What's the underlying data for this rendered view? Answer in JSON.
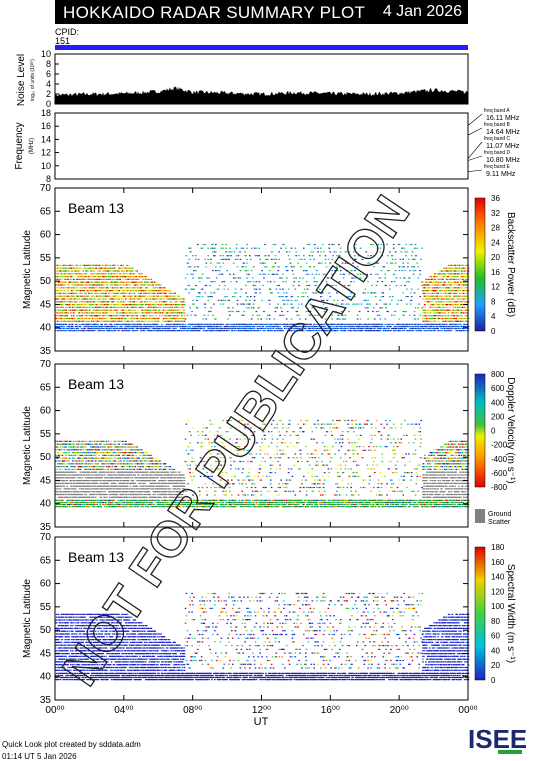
{
  "header": {
    "title": "HOKKAIDO RADAR SUMMARY PLOT",
    "date": "4 Jan 2026",
    "cpid_label": "CPID:",
    "cpid_value": "151"
  },
  "noise_panel": {
    "ylabel": "Noise Level",
    "sublabel": "log₁₀ of units (10³⁰)",
    "yticks": [
      "0",
      "2",
      "4",
      "6",
      "8",
      "10"
    ]
  },
  "freq_panel": {
    "ylabel": "Frequency",
    "unit": "(MHz)",
    "yticks": [
      "8",
      "10",
      "12",
      "14",
      "16",
      "18"
    ],
    "bands": [
      {
        "label": "freq band A",
        "value": "16.11 MHz"
      },
      {
        "label": "freq band B",
        "value": "14.64 MHz"
      },
      {
        "label": "freq band C",
        "value": "11.07 MHz"
      },
      {
        "label": "freq band D",
        "value": "10.80 MHz"
      },
      {
        "label": "freq band E",
        "value": "9.11 MHz"
      }
    ]
  },
  "beam_panels": [
    {
      "beam": "Beam 13",
      "ylabel": "Magnetic Latitude",
      "cbar_label": "Backscatter Power (dB)",
      "cbar_ticks": [
        "0",
        "4",
        "8",
        "12",
        "16",
        "20",
        "24",
        "28",
        "32",
        "36"
      ]
    },
    {
      "beam": "Beam 13",
      "ylabel": "Magnetic Latitude",
      "cbar_label": "Doppler Velocity (m s⁻¹)",
      "cbar_ticks": [
        "-800",
        "-600",
        "-400",
        "-200",
        "0",
        "200",
        "400",
        "600",
        "800"
      ],
      "ground_label": "Ground",
      "scatter_label": "Scatter"
    },
    {
      "beam": "Beam 13",
      "ylabel": "Magnetic Latitude",
      "cbar_label": "Spectral Width (m s⁻¹)",
      "cbar_ticks": [
        "0",
        "20",
        "40",
        "60",
        "80",
        "100",
        "120",
        "140",
        "160",
        "180"
      ]
    }
  ],
  "lat_ticks": [
    "35",
    "40",
    "45",
    "50",
    "55",
    "60",
    "65",
    "70"
  ],
  "xaxis": {
    "ticks": [
      "00⁰⁰",
      "04⁰⁰",
      "08⁰⁰",
      "12⁰⁰",
      "16⁰⁰",
      "20⁰⁰",
      "00⁰⁰"
    ],
    "label": "UT"
  },
  "watermark": "NOT FOR PUBLICATION",
  "footer": {
    "line1": "Quick Look plot created by sddata.adm",
    "line2": "01:14 UT  5 Jan 2026"
  },
  "logo": "ISEE",
  "colors": {
    "accent": "#2020ff",
    "ground": "#808080"
  },
  "chart_data": [
    {
      "type": "line",
      "title": "Noise Level",
      "x_range": [
        "00:00",
        "24:00"
      ],
      "ylim": [
        0,
        10
      ],
      "x": [
        0,
        2,
        4,
        6,
        7,
        8,
        10,
        12,
        14,
        16,
        18,
        20,
        22,
        24
      ],
      "values": [
        1.8,
        2.0,
        2.1,
        2.5,
        3.2,
        2.4,
        2.2,
        2.0,
        2.3,
        2.1,
        2.0,
        2.2,
        2.8,
        2.4
      ]
    },
    {
      "type": "scatter",
      "title": "Frequency",
      "ylim": [
        8,
        18
      ],
      "grid": true
    },
    {
      "type": "heatmap",
      "title": "Backscatter Power",
      "ylim": [
        35,
        70
      ],
      "zlim": [
        0,
        36
      ],
      "x_range": [
        "00:00",
        "24:00"
      ]
    },
    {
      "type": "heatmap",
      "title": "Doppler Velocity",
      "ylim": [
        35,
        70
      ],
      "zlim": [
        -800,
        800
      ],
      "x_range": [
        "00:00",
        "24:00"
      ]
    },
    {
      "type": "heatmap",
      "title": "Spectral Width",
      "ylim": [
        35,
        70
      ],
      "zlim": [
        0,
        180
      ],
      "x_range": [
        "00:00",
        "24:00"
      ]
    }
  ]
}
